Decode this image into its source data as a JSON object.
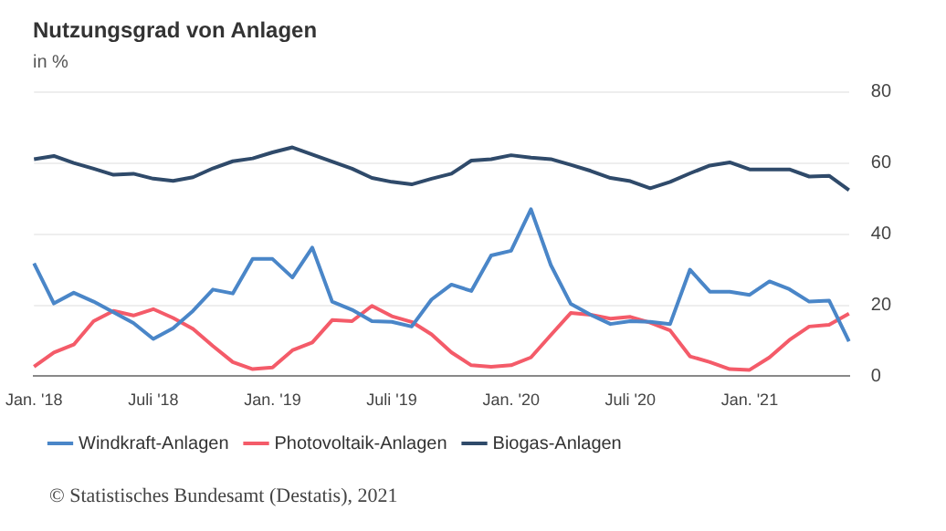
{
  "chart_data": {
    "type": "line",
    "title": "Nutzungsgrad von Anlagen",
    "subtitle": "in %",
    "categories": [
      "Jan. '18",
      null,
      null,
      null,
      null,
      null,
      "Juli '18",
      null,
      null,
      null,
      null,
      null,
      "Jan. '19",
      null,
      null,
      null,
      null,
      null,
      "Juli '19",
      null,
      null,
      null,
      null,
      null,
      "Jan. '20",
      null,
      null,
      null,
      null,
      null,
      "Juli '20",
      null,
      null,
      null,
      null,
      null,
      "Jan. '21",
      null,
      null,
      null,
      null,
      null
    ],
    "series": [
      {
        "name": "Windkraft-Anlagen",
        "color": "#4a86c8",
        "values": [
          31.8,
          20.5,
          23.5,
          21,
          18,
          15,
          10.5,
          13.5,
          18.4,
          24.4,
          23.3,
          33,
          33,
          27.8,
          36.2,
          21,
          18.7,
          15.5,
          15.3,
          14,
          21.6,
          25.8,
          24,
          34,
          35.3,
          47,
          31.3,
          20.4,
          17.3,
          14.7,
          15.5,
          15.3,
          14.7,
          30,
          23.8,
          23.8,
          22.9,
          26.7,
          24.5,
          21,
          21.3,
          9.8
        ]
      },
      {
        "name": "Photovoltaik-Anlagen",
        "color": "#f45b69",
        "values": [
          2.7,
          6.7,
          8.9,
          15.5,
          18.4,
          17.1,
          18.9,
          16.4,
          13.3,
          8.5,
          4,
          2,
          2.5,
          7.3,
          9.5,
          15.8,
          15.5,
          19.8,
          16.9,
          15.3,
          11.8,
          6.7,
          3.1,
          2.7,
          3.1,
          5.3,
          11.6,
          17.8,
          17.3,
          16.2,
          16.7,
          15.1,
          12.9,
          5.6,
          4,
          2,
          1.8,
          5.3,
          10.2,
          14,
          14.5,
          17.6
        ]
      },
      {
        "name": "Biogas-Anlagen",
        "color": "#2f4a6a",
        "values": [
          61.1,
          62,
          60,
          58.4,
          56.7,
          57,
          55.6,
          55,
          56,
          58.5,
          60.5,
          61.3,
          63,
          64.4,
          62.4,
          60.4,
          58.4,
          55.8,
          54.7,
          54,
          55.6,
          57,
          60.7,
          61.1,
          62.2,
          61.5,
          61.1,
          59.5,
          57.8,
          55.8,
          54.9,
          52.9,
          54.7,
          57.1,
          59.3,
          60.2,
          58.2,
          58.2,
          58.2,
          56.2,
          56.4,
          52.4
        ]
      }
    ],
    "ylim": [
      0,
      80
    ],
    "yticks": [
      0,
      20,
      40,
      60,
      80
    ],
    "grid": "y",
    "legend": "bottom left",
    "marker": "none",
    "line_style": "solid",
    "annotations": [
      "© Statistisches Bundesamt (Destatis), 2021"
    ]
  }
}
